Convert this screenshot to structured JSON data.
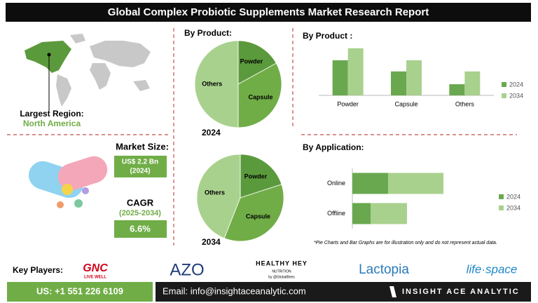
{
  "header": {
    "title": "Global Complex Probiotic Supplements Market Research Report"
  },
  "region": {
    "label": "Largest Region:",
    "value": "North America"
  },
  "market_size": {
    "label": "Market Size:",
    "value": "US$ 2.2 Bn",
    "year": "(2024)"
  },
  "cagr": {
    "label": "CAGR",
    "period": "(2025-2034)",
    "value": "6.6%"
  },
  "chart_data": [
    {
      "type": "pie",
      "title": "By Product:",
      "label": "2024",
      "categories": [
        "Powder",
        "Capsule",
        "Others"
      ],
      "values": [
        17,
        33,
        50
      ],
      "colors": [
        "#5b9a3c",
        "#70ad47",
        "#a9d18e"
      ]
    },
    {
      "type": "pie",
      "label": "2034",
      "categories": [
        "Powder",
        "Capsule",
        "Others"
      ],
      "values": [
        20,
        36,
        44
      ],
      "colors": [
        "#5b9a3c",
        "#70ad47",
        "#a9d18e"
      ]
    },
    {
      "type": "bar",
      "title": "By Product :",
      "categories": [
        "Powder",
        "Capsule",
        "Others"
      ],
      "ylim": [
        0,
        65
      ],
      "legend": "right",
      "series": [
        {
          "name": "2024",
          "color": "#6aa84f",
          "values": [
            44,
            30,
            14
          ]
        },
        {
          "name": "2034",
          "color": "#a9d18e",
          "values": [
            59,
            44,
            30
          ]
        }
      ]
    },
    {
      "type": "hbar",
      "stacked": true,
      "title": "By Application:",
      "categories": [
        "Online",
        "Offline"
      ],
      "xlim": [
        0,
        140
      ],
      "legend": "right",
      "series": [
        {
          "name": "2024",
          "color": "#6aa84f",
          "values": [
            51,
            26
          ]
        },
        {
          "name": "2034",
          "color": "#a9d18e",
          "values": [
            79,
            52
          ]
        }
      ]
    }
  ],
  "note": "*Pie Charts and Bar Graphs are for illustration only and do not represent actual data.",
  "key_players": {
    "label": "Key Players:",
    "companies": [
      {
        "name": "GNC",
        "tagline": "LIVE WELL"
      },
      {
        "name": "AZO"
      },
      {
        "name": "HEALTHY HEY",
        "tagline": "NUTRITION",
        "byline": "by @GlobalBees"
      },
      {
        "name": "Lactopia"
      },
      {
        "name": "life·space"
      }
    ]
  },
  "footer": {
    "phone": "US: +1 551 226 6109",
    "email": "Email: info@insightaceanalytic.com",
    "brand": "INSIGHT ACE ANALYTIC"
  }
}
